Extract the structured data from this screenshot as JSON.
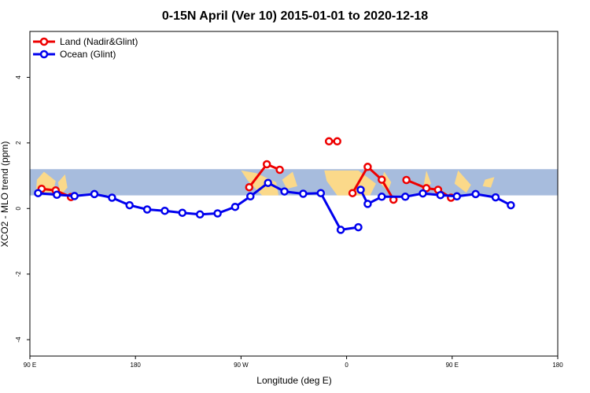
{
  "chart_data": {
    "type": "line",
    "title": "0-15N April (Ver 10)   2015-01-01 to 2020-12-18",
    "xlabel": "Longitude (deg E)",
    "ylabel": "XCO2 - MLO trend (ppm)",
    "xlim": [
      90,
      450
    ],
    "ylim": [
      -4.5,
      5.4
    ],
    "x_ticks": [
      {
        "value": 90,
        "label": "90 E"
      },
      {
        "value": 180,
        "label": "180"
      },
      {
        "value": 270,
        "label": "90 W"
      },
      {
        "value": 360,
        "label": "0"
      },
      {
        "value": 450,
        "label": "90 E"
      },
      {
        "value": 540,
        "label": "180"
      }
    ],
    "y_ticks": [
      {
        "value": -4,
        "label": "-4"
      },
      {
        "value": -2,
        "label": "-2"
      },
      {
        "value": 0,
        "label": "0"
      },
      {
        "value": 2,
        "label": "2"
      },
      {
        "value": 4,
        "label": "4"
      }
    ],
    "band": {
      "y0": 0.4,
      "y1": 1.2,
      "color": "#a7bcdd",
      "land_color": "#fbd98a"
    },
    "legend_position": "top-left",
    "grid": false,
    "series": [
      {
        "name": "Land (Nadir&Glint)",
        "color": "#ee0000",
        "points": [
          [
            100,
            0.6
          ],
          [
            112,
            0.55
          ],
          [
            125,
            0.35
          ],
          [
            277,
            0.65
          ],
          [
            292,
            1.35
          ],
          [
            303,
            1.18
          ],
          [
            345,
            2.05
          ],
          [
            352,
            2.05
          ],
          [
            365,
            0.47
          ],
          [
            378,
            1.27
          ],
          [
            390,
            0.88
          ],
          [
            400,
            0.27
          ],
          [
            411,
            0.87
          ],
          [
            428,
            0.62
          ],
          [
            438,
            0.57
          ],
          [
            449,
            0.33
          ]
        ],
        "segments": [
          [
            0,
            2
          ],
          [
            3,
            5
          ],
          [
            6,
            7
          ],
          [
            8,
            11
          ],
          [
            12,
            15
          ]
        ]
      },
      {
        "name": "Ocean (Glint)",
        "color": "#0000ee",
        "points": [
          [
            97,
            0.47
          ],
          [
            113,
            0.42
          ],
          [
            128,
            0.38
          ],
          [
            145,
            0.44
          ],
          [
            160,
            0.33
          ],
          [
            175,
            0.1
          ],
          [
            190,
            -0.03
          ],
          [
            205,
            -0.07
          ],
          [
            220,
            -0.13
          ],
          [
            235,
            -0.18
          ],
          [
            250,
            -0.15
          ],
          [
            265,
            0.05
          ],
          [
            278,
            0.37
          ],
          [
            293,
            0.78
          ],
          [
            307,
            0.52
          ],
          [
            323,
            0.45
          ],
          [
            338,
            0.47
          ],
          [
            355,
            -0.65
          ],
          [
            370,
            -0.57
          ],
          [
            372,
            0.57
          ],
          [
            378,
            0.14
          ],
          [
            390,
            0.36
          ],
          [
            410,
            0.36
          ],
          [
            425,
            0.46
          ],
          [
            440,
            0.41
          ],
          [
            454,
            0.37
          ],
          [
            470,
            0.44
          ],
          [
            487,
            0.34
          ],
          [
            500,
            0.1
          ]
        ],
        "segments": [
          [
            0,
            18
          ],
          [
            19,
            28
          ]
        ]
      }
    ]
  }
}
